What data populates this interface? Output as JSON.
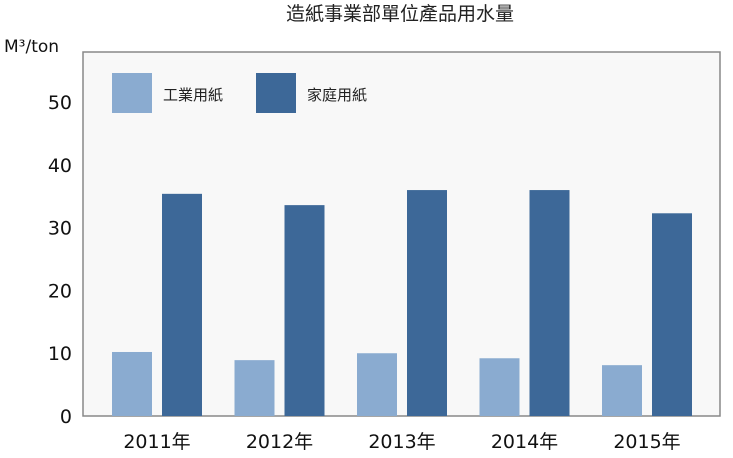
{
  "chart_data": {
    "type": "bar",
    "title": "造紙事業部單位產品用水量",
    "ylabel": "M³/ton",
    "xlabel": "",
    "categories": [
      "2011年",
      "2012年",
      "2013年",
      "2014年",
      "2015年"
    ],
    "series": [
      {
        "name": "工業用紙",
        "color": "#8aabd0",
        "values": [
          10.2,
          8.9,
          10.0,
          9.2,
          8.1
        ]
      },
      {
        "name": "家庭用紙",
        "color": "#3d6898",
        "values": [
          35.4,
          33.6,
          36.0,
          36.0,
          32.3
        ]
      }
    ],
    "yticks": [
      "0",
      "10",
      "20",
      "30",
      "40",
      "50"
    ],
    "ylim": [
      0,
      58
    ],
    "grid": false,
    "legend": "top-left",
    "plot_background": "#f8f8f8"
  }
}
